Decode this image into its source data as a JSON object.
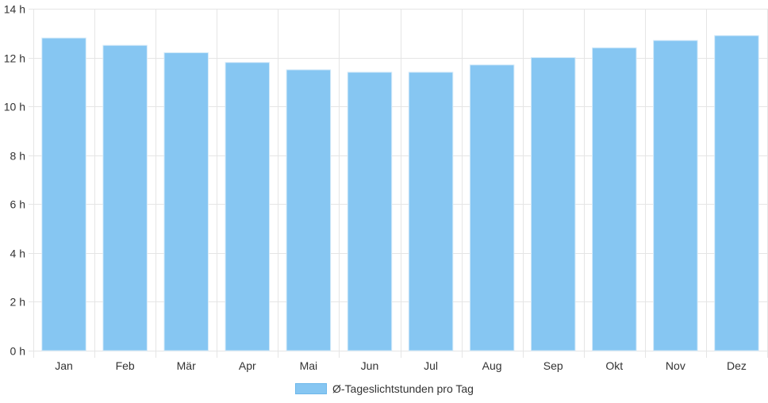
{
  "chart_data": {
    "type": "bar",
    "categories": [
      "Jan",
      "Feb",
      "Mär",
      "Apr",
      "Mai",
      "Jun",
      "Jul",
      "Aug",
      "Sep",
      "Okt",
      "Nov",
      "Dez"
    ],
    "series": [
      {
        "name": "Ø-Tageslichtstunden pro Tag",
        "values": [
          12.8,
          12.5,
          12.2,
          11.8,
          11.5,
          11.4,
          11.4,
          11.7,
          12.0,
          12.4,
          12.7,
          12.9
        ]
      }
    ],
    "ylim": [
      0,
      14
    ],
    "yticks": [
      0,
      2,
      4,
      6,
      8,
      10,
      12,
      14
    ],
    "ytick_labels": [
      "0 h",
      "2 h",
      "4 h",
      "6 h",
      "8 h",
      "10 h",
      "12 h",
      "14 h"
    ],
    "grid": true,
    "legend_position": "bottom",
    "bar_color": "#86c6f2",
    "bar_edge_color": "#d4eaf9",
    "grid_color": "#e5e5e5"
  }
}
